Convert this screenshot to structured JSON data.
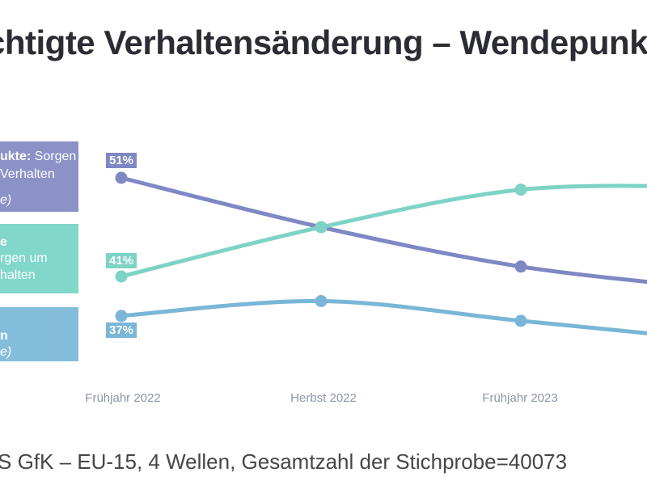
{
  "title": {
    "text": "chtigte Verhaltensänderung – Wendepunkt"
  },
  "legend": {
    "purple": {
      "box_color": "#8A92C8",
      "line1_bold": "ukte:",
      "line1_rest": " Sorgen",
      "line2": "Verhalten",
      "line3_italic": "e)"
    },
    "teal": {
      "box_color": "#82D7CB",
      "line1_bold": "e",
      "line2": "rgen um",
      "line3": "halten"
    },
    "blue": {
      "box_color": "#85BEDD",
      "line1_bold": "n",
      "line2_italic": "e)"
    }
  },
  "chart_data": {
    "type": "line",
    "title": "chtigte Verhaltensänderung – Wendepunkt",
    "value_unit": "%",
    "categories": [
      "Frühjahr 2022",
      "Herbst 2022",
      "Frühjahr 2023"
    ],
    "legend_position": "left",
    "grid": false,
    "series": [
      {
        "name": "purple-series (…ukte: Sorgen …Verhalten …e)",
        "color": "#7E88C4",
        "label": "51%",
        "values": [
          51,
          46,
          42
        ],
        "edge_value": 39.7
      },
      {
        "name": "teal-series (…e …rgen um …halten)",
        "color": "#7DD3C5",
        "label": "41%",
        "values": [
          41,
          46,
          49.8
        ],
        "edge_value": 50.1
      },
      {
        "name": "blue-series (…n …e)",
        "color": "#79B6D7",
        "label": "37%",
        "values": [
          37,
          38.5,
          36.5
        ],
        "edge_value": 34.5
      }
    ]
  },
  "source": {
    "text": "S GfK – EU-15, 4 Wellen, Gesamtzahl der Stichprobe=40073"
  }
}
